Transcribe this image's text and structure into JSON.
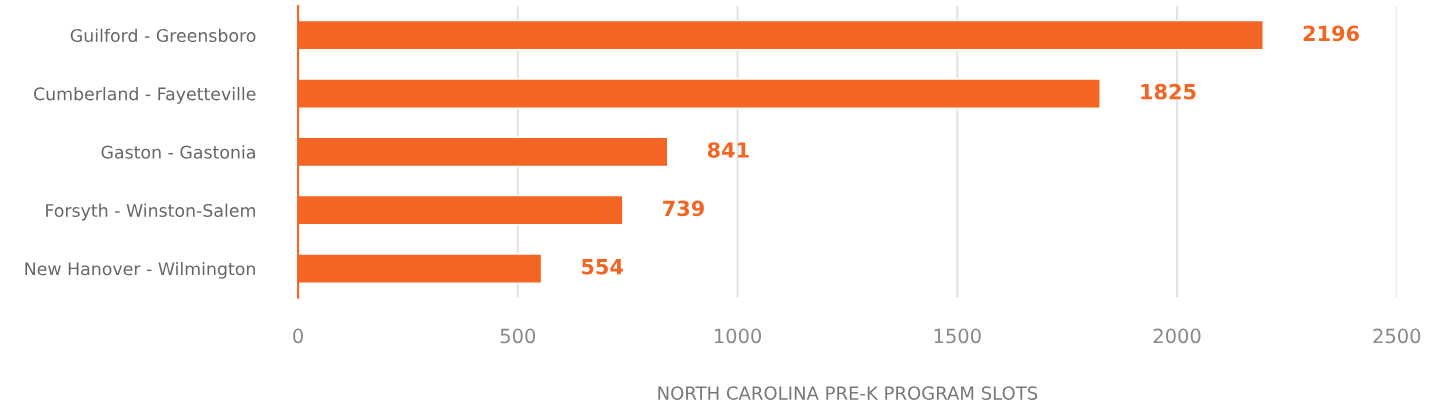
{
  "chart_data": {
    "type": "bar",
    "orientation": "horizontal",
    "categories": [
      "Guilford - Greensboro",
      "Cumberland - Fayetteville",
      "Gaston - Gastonia",
      "Forsyth - Winston-Salem",
      "New Hanover - Wilmington"
    ],
    "values": [
      2196,
      1825,
      841,
      739,
      554
    ],
    "color": "#f26522",
    "xlabel": "NORTH CAROLINA PRE-K PROGRAM SLOTS",
    "xlim": [
      0,
      2500
    ],
    "xticks": [
      0,
      500,
      1000,
      1500,
      2000,
      2500
    ],
    "grid": "x",
    "data_labels": true
  }
}
